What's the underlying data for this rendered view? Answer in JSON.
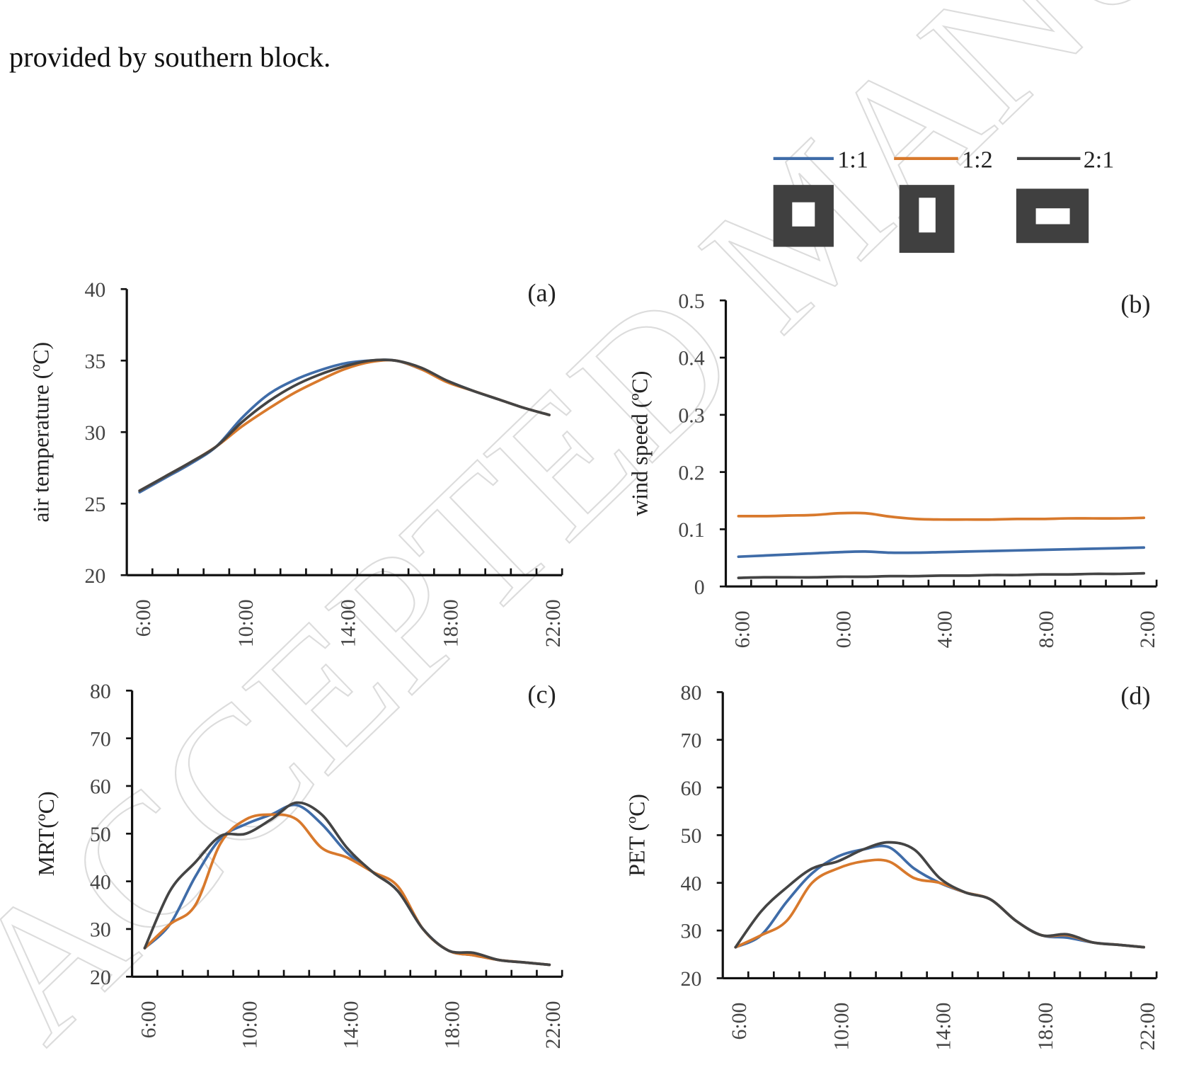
{
  "intro_text": "provided by southern block.",
  "watermark": "ACCEPTED MANUSCRIPT",
  "chart_data": [
    {
      "type": "line",
      "panel_label": "(a)",
      "y_label": "air temperature  (ºC)",
      "categories": [
        "6:00",
        null,
        null,
        null,
        "10:00",
        null,
        null,
        null,
        "14:00",
        null,
        null,
        null,
        "18:00",
        null,
        null,
        null,
        "22:00"
      ],
      "ylim": [
        20,
        40
      ],
      "yticks": [
        20,
        25,
        30,
        35,
        40
      ],
      "series": [
        {
          "name": "1:1",
          "color": "#3f6ca8",
          "values": [
            25.8,
            26.8,
            27.8,
            29.0,
            31.0,
            32.6,
            33.6,
            34.3,
            34.8,
            35.0,
            35.0,
            34.4,
            33.6,
            32.9,
            32.3,
            31.7,
            31.2
          ]
        },
        {
          "name": "1:2",
          "color": "#d8792c",
          "values": [
            25.9,
            26.9,
            27.9,
            29.0,
            30.4,
            31.6,
            32.7,
            33.6,
            34.4,
            34.9,
            35.0,
            34.4,
            33.5,
            32.9,
            32.3,
            31.7,
            31.2
          ]
        },
        {
          "name": "2:1",
          "color": "#444444",
          "values": [
            25.9,
            26.9,
            27.9,
            29.0,
            30.7,
            32.1,
            33.2,
            34.0,
            34.6,
            35.0,
            35.0,
            34.5,
            33.6,
            32.9,
            32.3,
            31.7,
            31.2
          ]
        }
      ]
    },
    {
      "type": "line",
      "panel_label": "(b)",
      "y_label": "wind speed (ºC)",
      "categories": [
        "6:00",
        null,
        null,
        null,
        "0:00",
        null,
        null,
        null,
        "4:00",
        null,
        null,
        null,
        "8:00",
        null,
        null,
        null,
        "2:00"
      ],
      "ylim": [
        0,
        0.5
      ],
      "yticks": [
        0,
        0.1,
        0.2,
        0.3,
        0.4,
        0.5
      ],
      "series": [
        {
          "name": "1:1",
          "color": "#3f6ca8",
          "values": [
            0.052,
            0.054,
            0.056,
            0.058,
            0.06,
            0.061,
            0.059,
            0.059,
            0.06,
            0.061,
            0.062,
            0.063,
            0.064,
            0.065,
            0.066,
            0.067,
            0.068
          ]
        },
        {
          "name": "1:2",
          "color": "#d8792c",
          "values": [
            0.123,
            0.123,
            0.124,
            0.125,
            0.128,
            0.128,
            0.122,
            0.118,
            0.117,
            0.117,
            0.117,
            0.118,
            0.118,
            0.119,
            0.119,
            0.119,
            0.12
          ]
        },
        {
          "name": "2:1",
          "color": "#444444",
          "values": [
            0.015,
            0.016,
            0.016,
            0.016,
            0.017,
            0.017,
            0.018,
            0.018,
            0.019,
            0.019,
            0.02,
            0.02,
            0.021,
            0.021,
            0.022,
            0.022,
            0.023
          ]
        }
      ]
    },
    {
      "type": "line",
      "panel_label": "(c)",
      "y_label": "MRT(ºC)",
      "categories": [
        "6:00",
        null,
        null,
        null,
        "10:00",
        null,
        null,
        null,
        "14:00",
        null,
        null,
        null,
        "18:00",
        null,
        null,
        null,
        "22:00"
      ],
      "ylim": [
        20,
        80
      ],
      "yticks": [
        20,
        30,
        40,
        50,
        60,
        70,
        80
      ],
      "series": [
        {
          "name": "1:1",
          "color": "#3f6ca8",
          "values": [
            26,
            31,
            41,
            49,
            52,
            54,
            56,
            52,
            46,
            42,
            38,
            30,
            25.5,
            24.5,
            23.5,
            23,
            22.5
          ]
        },
        {
          "name": "1:2",
          "color": "#d8792c",
          "values": [
            26,
            31,
            35,
            48,
            53,
            54,
            53,
            47,
            45,
            42,
            39,
            30,
            25.5,
            24.5,
            23.5,
            23,
            22.5
          ]
        },
        {
          "name": "2:1",
          "color": "#444444",
          "values": [
            26,
            38,
            44,
            49.5,
            50,
            53,
            56.5,
            54,
            47,
            42,
            38,
            30,
            25.5,
            25,
            23.5,
            23,
            22.5
          ]
        }
      ]
    },
    {
      "type": "line",
      "panel_label": "(d)",
      "y_label": "PET (ºC)",
      "categories": [
        "6:00",
        null,
        null,
        null,
        "10:00",
        null,
        null,
        null,
        "14:00",
        null,
        null,
        null,
        "18:00",
        null,
        null,
        null,
        "22:00"
      ],
      "ylim": [
        20,
        80
      ],
      "yticks": [
        20,
        30,
        40,
        50,
        60,
        70,
        80
      ],
      "series": [
        {
          "name": "1:1",
          "color": "#3f6ca8",
          "values": [
            26.5,
            29,
            36,
            42,
            45.5,
            47,
            47.5,
            43,
            40,
            38,
            36.5,
            32,
            29,
            28.5,
            27.5,
            27,
            26.5
          ]
        },
        {
          "name": "1:2",
          "color": "#d8792c",
          "values": [
            26.5,
            29,
            32,
            40,
            43,
            44.5,
            44.5,
            41,
            40,
            38,
            36.5,
            32,
            29,
            29,
            27.5,
            27,
            26.5
          ]
        },
        {
          "name": "2:1",
          "color": "#444444",
          "values": [
            26.5,
            34,
            39,
            43,
            44.5,
            47,
            48.5,
            47,
            41,
            38,
            36.5,
            32,
            29,
            29.2,
            27.5,
            27,
            26.5
          ]
        }
      ]
    }
  ]
}
